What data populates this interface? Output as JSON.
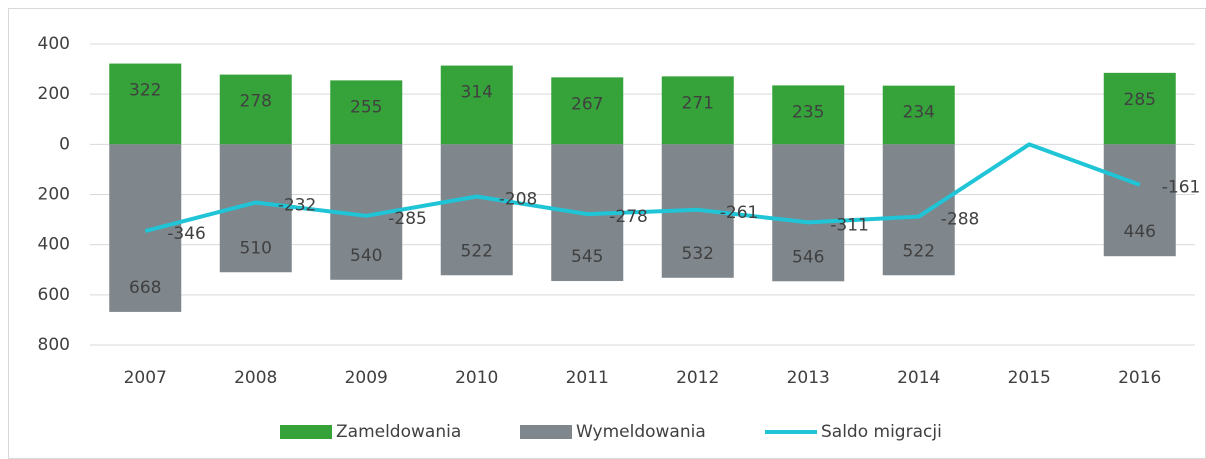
{
  "chart_data": {
    "type": "bar_line",
    "categories": [
      "2007",
      "2008",
      "2009",
      "2010",
      "2011",
      "2012",
      "2013",
      "2014",
      "2015",
      "2016"
    ],
    "series": [
      {
        "name": "Zameldowania",
        "color": "#36a33a",
        "values": [
          322,
          278,
          255,
          314,
          267,
          271,
          235,
          234,
          null,
          285
        ]
      },
      {
        "name": "Wymeldowania",
        "color": "#7f868c",
        "values": [
          -668,
          -510,
          -540,
          -522,
          -545,
          -532,
          -546,
          -522,
          null,
          -446
        ],
        "value_labels": [
          "668",
          "510",
          "540",
          "522",
          "545",
          "532",
          "546",
          "522",
          null,
          "446"
        ]
      },
      {
        "name": "Saldo migracji",
        "color": "#1fc5d6",
        "type": "line",
        "values": [
          -346,
          -232,
          -285,
          -208,
          -278,
          -261,
          -311,
          -288,
          0,
          -161
        ],
        "value_labels": [
          "-346",
          "-232",
          "-285",
          "-208",
          "-278",
          "-261",
          "-311",
          "-288",
          null,
          "-161"
        ]
      }
    ],
    "ylim": [
      -800,
      400
    ],
    "yticks": [
      {
        "value": -800,
        "label": "800"
      },
      {
        "value": -600,
        "label": "600"
      },
      {
        "value": -400,
        "label": "400"
      },
      {
        "value": -200,
        "label": "200"
      },
      0,
      200,
      400
    ],
    "grid": true,
    "legend": "bottom"
  }
}
